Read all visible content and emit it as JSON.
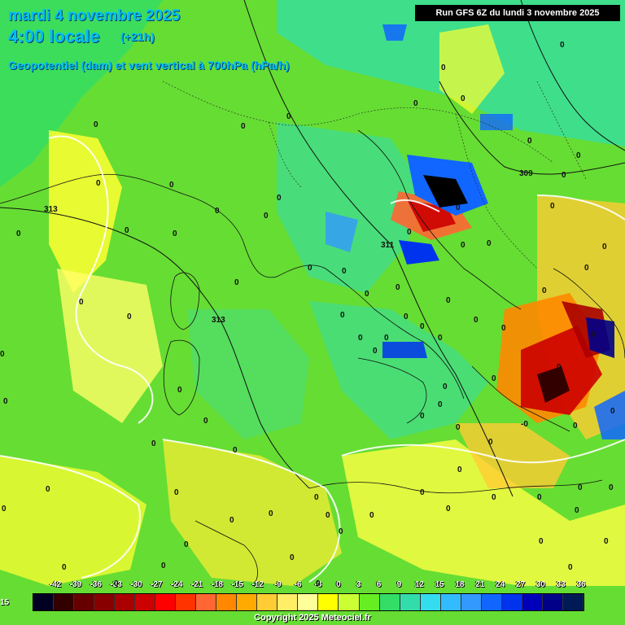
{
  "header": {
    "date": "mardi 4 novembre 2025",
    "time": "4:00 locale",
    "lead": "(+21h)",
    "parameter": "Geopotentiel (dam) et vent vertical à 700hPa (hPa/h)"
  },
  "run": "Run GFS 6Z du lundi 3 novembre 2025",
  "copyright": "Copyright 2025 Meteociel.fr",
  "edge_label": "15",
  "legend": {
    "ticks": [
      "-42",
      "-39",
      "-36",
      "-33",
      "-30",
      "-27",
      "-24",
      "-21",
      "-18",
      "-15",
      "-12",
      "-9",
      "-6",
      "-3",
      "0",
      "3",
      "6",
      "9",
      "12",
      "15",
      "18",
      "21",
      "24",
      "27",
      "30",
      "33",
      "36"
    ],
    "colors": [
      "#000022",
      "#330000",
      "#660000",
      "#880000",
      "#aa0000",
      "#cc0000",
      "#ff0000",
      "#ff3300",
      "#ff6633",
      "#ff8800",
      "#ffaa00",
      "#ffcc33",
      "#ffee66",
      "#ffff99",
      "#ffff00",
      "#ccff33",
      "#66ee22",
      "#33dd66",
      "#33ddaa",
      "#33ddee",
      "#33bbff",
      "#3399ff",
      "#1166ff",
      "#0033ee",
      "#0000bb",
      "#000088",
      "#001a55"
    ]
  },
  "contours": [
    {
      "label": "313",
      "value": 313
    },
    {
      "label": "313",
      "value": 313
    },
    {
      "label": "311",
      "value": 311
    },
    {
      "label": "309",
      "value": 309
    }
  ],
  "field_labels": [
    "0",
    "0",
    "0",
    "0",
    "0",
    "0",
    "0",
    "0",
    "0",
    "0",
    "0",
    "0",
    "0",
    "0",
    "0",
    "0",
    "0",
    "0",
    "0",
    "0",
    "0",
    "0",
    "0",
    "0",
    "0",
    "0",
    "0",
    "0",
    "0",
    "0",
    "0",
    "0",
    "0",
    "0",
    "0",
    "0",
    "0",
    "0",
    "0",
    "0",
    "0",
    "0",
    "0",
    "0",
    "0",
    "0",
    "0",
    "0",
    "0",
    "0",
    "0",
    "0",
    "0",
    "0",
    "0",
    "0",
    "0",
    "0",
    "0",
    "0",
    "0",
    "0",
    "-0",
    "0",
    "0",
    "0",
    "0",
    "0",
    "0",
    "0",
    "0",
    "0",
    "0",
    "0",
    "0",
    "0",
    "0",
    "0",
    "0",
    "0",
    "0",
    "0",
    "0",
    "0",
    "0",
    "0"
  ]
}
